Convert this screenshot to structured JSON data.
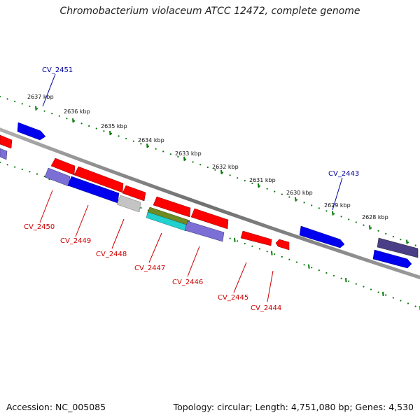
{
  "title": "Chromobacterium violaceum ATCC 12472, complete genome",
  "footer": {
    "accession": "Accession: NC_005085",
    "summary": "Topology: circular; Length: 4,751,080 bp; Genes: 4,530"
  },
  "colors": {
    "backbone": "#8c8c8c",
    "ticks": "#0a7a0a",
    "red": "#ff0000",
    "blue": "#0000ee",
    "violet": "#7b6fd6",
    "grey": "#c4c4c4",
    "olive": "#6e8a22",
    "cyan": "#22d0d0",
    "darkviolet": "#4a3f86",
    "label_red": "#cc0000",
    "label_blue": "#000099"
  },
  "scale_labels": [
    {
      "text": "2637 kbp",
      "kbp": 2637
    },
    {
      "text": "2636 kbp",
      "kbp": 2636
    },
    {
      "text": "2635 kbp",
      "kbp": 2635
    },
    {
      "text": "2634 kbp",
      "kbp": 2634
    },
    {
      "text": "2633 kbp",
      "kbp": 2633
    },
    {
      "text": "2632 kbp",
      "kbp": 2632
    },
    {
      "text": "2631 kbp",
      "kbp": 2631
    },
    {
      "text": "2630 kbp",
      "kbp": 2630
    },
    {
      "text": "2629 kbp",
      "kbp": 2629
    },
    {
      "text": "2628 kbp",
      "kbp": 2628
    }
  ],
  "gene_labels": [
    {
      "text": "CV_2451",
      "strand": "plus"
    },
    {
      "text": "CV_2443",
      "strand": "plus"
    },
    {
      "text": "CV_2450",
      "strand": "minus"
    },
    {
      "text": "CV_2449",
      "strand": "minus"
    },
    {
      "text": "CV_2448",
      "strand": "minus"
    },
    {
      "text": "CV_2447",
      "strand": "minus"
    },
    {
      "text": "CV_2446",
      "strand": "minus"
    },
    {
      "text": "CV_2445",
      "strand": "minus"
    },
    {
      "text": "CV_2444",
      "strand": "minus"
    }
  ]
}
